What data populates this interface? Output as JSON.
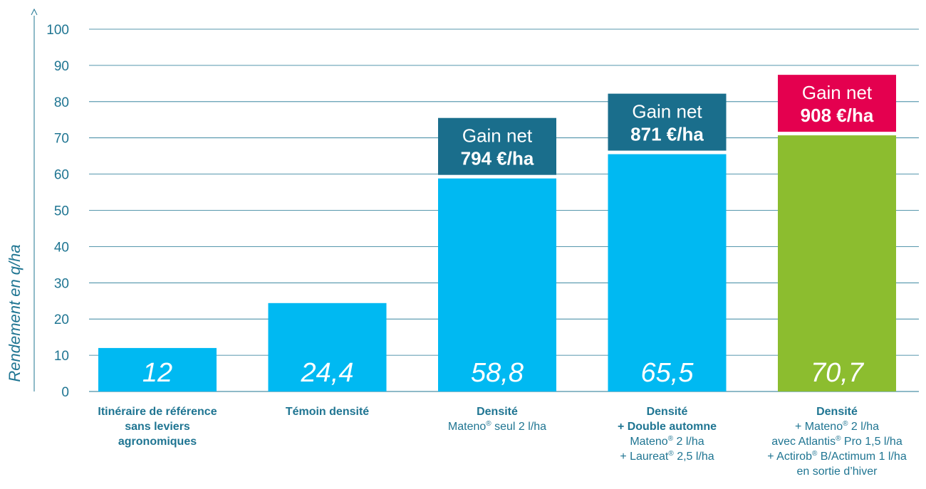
{
  "chart_data": {
    "type": "bar",
    "ylabel": "Rendement en q/ha",
    "ylim": [
      0,
      100
    ],
    "yticks": [
      0,
      10,
      20,
      30,
      40,
      50,
      60,
      70,
      80,
      90,
      100
    ],
    "grid": true,
    "colors": {
      "bar": "#00b9f2",
      "highlight": "#8cbd2f",
      "gain_box": "#1a6e8c",
      "gain_box_highlight": "#e4004f",
      "axis": "#1f7592"
    },
    "bars": [
      {
        "value": 12,
        "value_label": "12",
        "color": "#00b9f2",
        "category": [
          {
            "text": "Itinéraire de référence",
            "bold": true
          },
          {
            "text": "sans leviers",
            "bold": true
          },
          {
            "text": "agronomiques",
            "bold": true
          }
        ]
      },
      {
        "value": 24.4,
        "value_label": "24,4",
        "color": "#00b9f2",
        "category": [
          {
            "text": "Témoin densité",
            "bold": true
          }
        ]
      },
      {
        "value": 58.8,
        "value_label": "58,8",
        "color": "#00b9f2",
        "gain": {
          "title": "Gain net",
          "value": "794 €/ha",
          "color": "#1a6e8c"
        },
        "category": [
          {
            "text": "Densité",
            "bold": true
          },
          {
            "parts": [
              "Mateno",
              "®",
              " seul 2 l/ha"
            ]
          }
        ]
      },
      {
        "value": 65.5,
        "value_label": "65,5",
        "color": "#00b9f2",
        "gain": {
          "title": "Gain net",
          "value": "871 €/ha",
          "color": "#1a6e8c"
        },
        "category": [
          {
            "text": "Densité",
            "bold": true
          },
          {
            "text": "+ Double automne",
            "bold": true
          },
          {
            "parts": [
              "Mateno",
              "®",
              " 2 l/ha"
            ]
          },
          {
            "parts": [
              "+ Laureat",
              "®",
              " 2,5 l/ha"
            ]
          }
        ]
      },
      {
        "value": 70.7,
        "value_label": "70,7",
        "color": "#8cbd2f",
        "gain": {
          "title": "Gain net",
          "value": "908 €/ha",
          "color": "#e4004f"
        },
        "category": [
          {
            "text": "Densité",
            "bold": true
          },
          {
            "parts": [
              "+ Mateno",
              "®",
              " 2 l/ha"
            ]
          },
          {
            "parts": [
              "avec Atlantis",
              "®",
              " Pro 1,5 l/ha"
            ]
          },
          {
            "parts": [
              "+     Actirob",
              "®",
              " B/Actimum 1 l/ha"
            ]
          },
          {
            "text": "en sortie d’hiver"
          }
        ]
      }
    ]
  }
}
